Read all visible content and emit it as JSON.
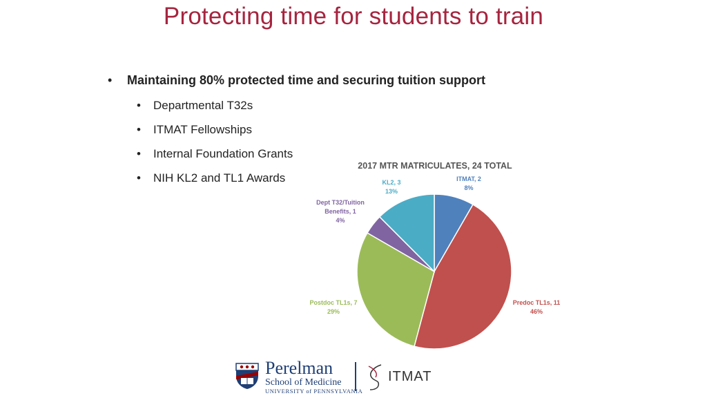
{
  "slide": {
    "title": "Protecting time for students to train",
    "main_bullet": "Maintaining 80% protected time and securing tuition support",
    "sub_bullets": [
      "Departmental T32s",
      "ITMAT Fellowships",
      "Internal Foundation Grants",
      "NIH KL2 and TL1 Awards"
    ]
  },
  "chart_data": {
    "type": "pie",
    "title": "2017 MTR MATRICULATES, 24 TOTAL",
    "slices": [
      {
        "label": "ITMAT",
        "value": 2,
        "percent": "8%",
        "color": "#4f81bd"
      },
      {
        "label": "Predoc TL1s",
        "value": 11,
        "percent": "46%",
        "color": "#c0504d"
      },
      {
        "label": "Postdoc TL1s",
        "value": 7,
        "percent": "29%",
        "color": "#9bbb59"
      },
      {
        "label": "Dept T32/Tuition Benefits",
        "value": 1,
        "percent": "4%",
        "color": "#8064a2"
      },
      {
        "label": "KL2",
        "value": 3,
        "percent": "13%",
        "color": "#4bacc6"
      }
    ]
  },
  "footer": {
    "penn_line1": "Perelman",
    "penn_line2": "School of Medicine",
    "penn_line3": "UNIVERSITY of PENNSYLVANIA",
    "itmat_logo": "ITMAT"
  }
}
